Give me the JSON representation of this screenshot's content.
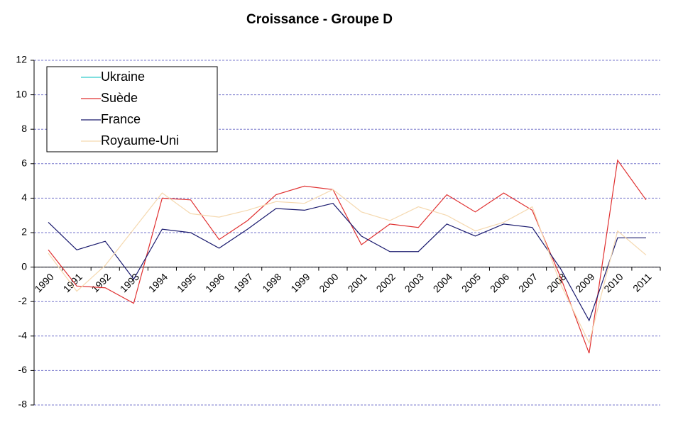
{
  "chart_data": {
    "type": "line",
    "title": "Croissance - Groupe D",
    "categories": [
      "1990",
      "1991",
      "1992",
      "1993",
      "1994",
      "1995",
      "1996",
      "1997",
      "1998",
      "1999",
      "2000",
      "2001",
      "2002",
      "2003",
      "2004",
      "2005",
      "2006",
      "2007",
      "2008",
      "2009",
      "2010",
      "2011"
    ],
    "series": [
      {
        "name": "Ukraine",
        "color": "#33cccc",
        "values": [
          null,
          null,
          null,
          null,
          null,
          null,
          null,
          null,
          null,
          null,
          null,
          null,
          null,
          null,
          null,
          null,
          null,
          null,
          null,
          null,
          null,
          null
        ]
      },
      {
        "name": "Suède",
        "color": "#e03030",
        "values": [
          1.0,
          -1.1,
          -1.2,
          -2.1,
          4.0,
          3.9,
          1.6,
          2.7,
          4.2,
          4.7,
          4.5,
          1.3,
          2.5,
          2.3,
          4.2,
          3.2,
          4.3,
          3.3,
          -0.6,
          -5.0,
          6.2,
          3.9
        ]
      },
      {
        "name": "France",
        "color": "#1a1a6e",
        "values": [
          2.6,
          1.0,
          1.5,
          -0.7,
          2.2,
          2.0,
          1.1,
          2.2,
          3.4,
          3.3,
          3.7,
          1.8,
          0.9,
          0.9,
          2.5,
          1.8,
          2.5,
          2.3,
          -0.1,
          -3.1,
          1.7,
          1.7
        ]
      },
      {
        "name": "Royaume-Uni",
        "color": "#f5d9b0",
        "values": [
          0.8,
          -1.4,
          0.1,
          2.2,
          4.3,
          3.1,
          2.9,
          3.3,
          3.8,
          3.7,
          4.5,
          3.2,
          2.7,
          3.5,
          3.0,
          2.1,
          2.6,
          3.5,
          -1.0,
          -4.4,
          2.1,
          0.7
        ]
      }
    ],
    "ylim": [
      -8,
      12
    ],
    "yticks": [
      -8,
      -6,
      -4,
      -2,
      0,
      2,
      4,
      6,
      8,
      10,
      12
    ],
    "grid": true,
    "legend": "top-left"
  }
}
